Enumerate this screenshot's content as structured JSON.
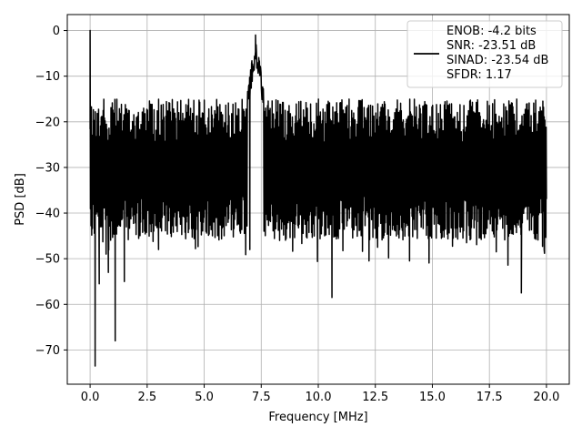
{
  "chart_data": {
    "type": "line",
    "xlabel": "Frequency [MHz]",
    "ylabel": "PSD [dB]",
    "xlim": [
      -1.0,
      21.0
    ],
    "ylim": [
      -77.5,
      3.5
    ],
    "xticks": [
      0.0,
      2.5,
      5.0,
      7.5,
      10.0,
      12.5,
      15.0,
      17.5,
      20.0
    ],
    "xtick_labels": [
      "0.0",
      "2.5",
      "5.0",
      "7.5",
      "10.0",
      "12.5",
      "15.0",
      "17.5",
      "20.0"
    ],
    "yticks": [
      0,
      -10,
      -20,
      -30,
      -40,
      -50,
      -60,
      -70
    ],
    "ytick_labels": [
      "0",
      "−10",
      "−20",
      "−30",
      "−40",
      "−50",
      "−60",
      "−70"
    ],
    "grid": true,
    "legend_position": "top-right",
    "legend_lines": [
      "ENOB: -4.2 bits",
      "SNR: -23.51 dB",
      "SINAD: -23.54 dB",
      "SFDR: 1.17"
    ],
    "series": [
      {
        "color": "#000000",
        "approx_band": {
          "upper_db": -13,
          "lower_db": -42
        },
        "peaks": [
          {
            "x": 0.0,
            "y": 0.0
          },
          {
            "x": 7.25,
            "y": -1.0
          }
        ],
        "dips": [
          {
            "x": 0.22,
            "y": -73.5
          },
          {
            "x": 1.1,
            "y": -68.0
          },
          {
            "x": 10.6,
            "y": -58.5
          },
          {
            "x": 18.9,
            "y": -57.5
          },
          {
            "x": 0.8,
            "y": -53.0
          },
          {
            "x": 1.5,
            "y": -55.0
          },
          {
            "x": 0.4,
            "y": -55.5
          },
          {
            "x": 14.0,
            "y": -50.5
          },
          {
            "x": 17.8,
            "y": -48.5
          },
          {
            "x": 16.5,
            "y": -46.5
          },
          {
            "x": 19.9,
            "y": -48.0
          },
          {
            "x": 3.0,
            "y": -48.0
          },
          {
            "x": 7.0,
            "y": -48.0
          },
          {
            "x": 12.6,
            "y": -47.5
          }
        ]
      }
    ]
  }
}
